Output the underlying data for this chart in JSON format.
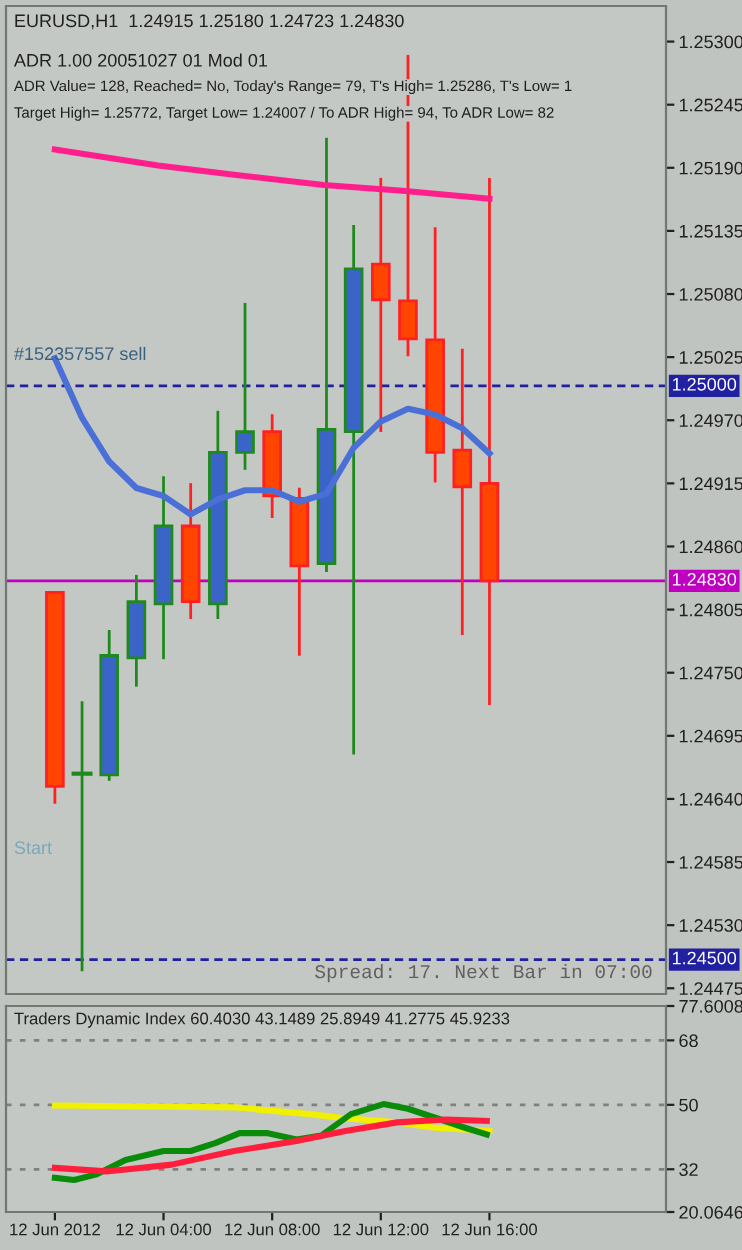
{
  "chart_data": [
    {
      "type": "candlestick",
      "title": "EURUSD,H1  1.24915 1.25180 1.24723 1.24830",
      "annotations": [
        "ADR 1.00 20051027 01 Mod 01",
        "ADR Value= 128, Reached= No, Today's Range= 79, T's High= 1.25286, T's Low= 1",
        "Target High= 1.25772, Target Low= 1.24007 / To ADR High= 94, To ADR Low= 82",
        "#152357557 sell",
        "Start",
        "Spread: 17. Next Bar in 07:00"
      ],
      "x": [
        "2012-06-12T00:00",
        "2012-06-12T01:00",
        "2012-06-12T02:00",
        "2012-06-12T03:00",
        "2012-06-12T04:00",
        "2012-06-12T05:00",
        "2012-06-12T06:00",
        "2012-06-12T07:00",
        "2012-06-12T08:00",
        "2012-06-12T09:00",
        "2012-06-12T10:00",
        "2012-06-12T11:00",
        "2012-06-12T12:00",
        "2012-06-12T13:00",
        "2012-06-12T14:00",
        "2012-06-12T15:00",
        "2012-06-12T16:00"
      ],
      "ohlc": [
        [
          1.2482,
          1.2482,
          1.24637,
          1.24651
        ],
        [
          1.24662,
          1.24724,
          1.24491,
          1.24662
        ],
        [
          1.24661,
          1.24786,
          1.24657,
          1.24765
        ],
        [
          1.24763,
          1.24834,
          1.24739,
          1.24812
        ],
        [
          1.2481,
          1.2492,
          1.24763,
          1.24878
        ],
        [
          1.24878,
          1.24914,
          1.24798,
          1.24812
        ],
        [
          1.2481,
          1.24977,
          1.24798,
          1.24942
        ],
        [
          1.24942,
          1.25071,
          1.24928,
          1.2496
        ],
        [
          1.2496,
          1.24974,
          1.24886,
          1.24904
        ],
        [
          1.24902,
          1.2491,
          1.24766,
          1.24843
        ],
        [
          1.24845,
          1.25215,
          1.24839,
          1.24962
        ],
        [
          1.2496,
          1.25139,
          1.2468,
          1.25102
        ],
        [
          1.25106,
          1.2518,
          1.24961,
          1.25075
        ],
        [
          1.25074,
          1.25287,
          1.25027,
          1.25041
        ],
        [
          1.2504,
          1.25137,
          1.24917,
          1.24942
        ],
        [
          1.24944,
          1.25031,
          1.24784,
          1.24912
        ],
        [
          1.24915,
          1.2518,
          1.24723,
          1.2483
        ]
      ],
      "colors": [
        "#ff4500",
        "#1e8a1e",
        "#3a64c8",
        "#3a64c8",
        "#3a64c8",
        "#ff4500",
        "#3a64c8",
        "#3a64c8",
        "#ff4500",
        "#ff4500",
        "#3a64c8",
        "#3a64c8",
        "#ff4500",
        "#ff4500",
        "#ff4500",
        "#ff4500",
        "#ff4500"
      ],
      "series": [
        {
          "type": "line",
          "color": "#ff1e8c",
          "x": [
            "2012-06-12T00:00",
            "2012-06-12T03:48",
            "2012-06-12T06:36",
            "2012-06-12T09:54",
            "2012-06-12T12:48",
            "2012-06-12T16:00"
          ],
          "values": [
            1.25206,
            1.25192,
            1.25184,
            1.25175,
            1.2517,
            1.25163
          ]
        },
        {
          "type": "line",
          "color": "#4a6fd6",
          "x": [
            "2012-06-12T00:00",
            "2012-06-12T01:00",
            "2012-06-12T02:00",
            "2012-06-12T03:00",
            "2012-06-12T04:00",
            "2012-06-12T05:00",
            "2012-06-12T06:00",
            "2012-06-12T07:00",
            "2012-06-12T08:00",
            "2012-06-12T09:00",
            "2012-06-12T10:00",
            "2012-06-12T11:00",
            "2012-06-12T12:00",
            "2012-06-12T13:00",
            "2012-06-12T14:00",
            "2012-06-12T15:00",
            "2012-06-12T16:00"
          ],
          "values": [
            1.25024,
            1.24972,
            1.24934,
            1.24911,
            1.24904,
            1.24888,
            1.24901,
            1.24909,
            1.24909,
            1.24899,
            1.24906,
            1.24946,
            1.24969,
            1.2498,
            1.24975,
            1.24963,
            1.24941
          ]
        }
      ],
      "ref_lines": [
        {
          "axis": "y",
          "value": 1.25,
          "label": "1.25000",
          "color": "#2020a0",
          "line_style": "dashed"
        },
        {
          "axis": "y",
          "value": 1.2483,
          "label": "1.24830",
          "color": "#c000c0",
          "line_style": "solid"
        },
        {
          "axis": "y",
          "value": 1.245,
          "label": "1.24500",
          "color": "#2020a0",
          "line_style": "dashed"
        }
      ],
      "xlim": [
        "2012-06-11T22:12",
        "2012-06-12T22:30"
      ],
      "ylim": [
        1.2447,
        1.25331
      ],
      "yticks": [
        {
          "value": 1.253,
          "label": "1.25300"
        },
        {
          "value": 1.25245,
          "label": "1.25245"
        },
        {
          "value": 1.2519,
          "label": "1.25190"
        },
        {
          "value": 1.25135,
          "label": "1.25135"
        },
        {
          "value": 1.2508,
          "label": "1.25080"
        },
        {
          "value": 1.25025,
          "label": "1.25025"
        },
        {
          "value": 1.2497,
          "label": "1.24970"
        },
        {
          "value": 1.24915,
          "label": "1.24915"
        },
        {
          "value": 1.2486,
          "label": "1.24860"
        },
        {
          "value": 1.24805,
          "label": "1.24805"
        },
        {
          "value": 1.2475,
          "label": "1.24750"
        },
        {
          "value": 1.24695,
          "label": "1.24695"
        },
        {
          "value": 1.2464,
          "label": "1.24640"
        },
        {
          "value": 1.24585,
          "label": "1.24585"
        },
        {
          "value": 1.2453,
          "label": "1.24530"
        },
        {
          "value": 1.24475,
          "label": "1.24475"
        }
      ],
      "tick_labels": "y",
      "grid": false
    },
    {
      "type": "line",
      "title": "Traders Dynamic Index 60.4030 43.1489 25.8949 41.2775 45.9233",
      "series": [
        {
          "color": "#f0f000",
          "x": [
            "2012-06-12T00:00",
            "2012-06-12T06:36",
            "2012-06-12T09:24",
            "2012-06-12T10:30",
            "2012-06-12T12:36",
            "2012-06-12T14:00",
            "2012-06-12T16:00"
          ],
          "values": [
            49.8,
            49.3,
            47.4,
            46.4,
            45.1,
            43.6,
            42.7
          ]
        },
        {
          "color": "#0a8c0a",
          "x": [
            "2012-06-12T00:00",
            "2012-06-12T00:42",
            "2012-06-12T01:30",
            "2012-06-12T02:36",
            "2012-06-12T04:00",
            "2012-06-12T05:00",
            "2012-06-12T05:54",
            "2012-06-12T06:48",
            "2012-06-12T07:48",
            "2012-06-12T08:54",
            "2012-06-12T09:48",
            "2012-06-12T10:54",
            "2012-06-12T12:06",
            "2012-06-12T13:00",
            "2012-06-12T14:12",
            "2012-06-12T15:06",
            "2012-06-12T15:54"
          ],
          "values": [
            29.6,
            29.0,
            30.5,
            34.6,
            37.1,
            37.1,
            39.3,
            42.1,
            42.1,
            40.3,
            41.4,
            47.4,
            50.2,
            48.9,
            45.9,
            43.6,
            41.7
          ]
        },
        {
          "color": "#ff1e3c",
          "x": [
            "2012-06-12T00:00",
            "2012-06-12T01:54",
            "2012-06-12T04:18",
            "2012-06-12T06:36",
            "2012-06-12T08:54",
            "2012-06-12T10:42",
            "2012-06-12T12:36",
            "2012-06-12T14:24",
            "2012-06-12T15:54"
          ],
          "values": [
            32.4,
            31.4,
            33.3,
            37.1,
            39.9,
            42.7,
            45.1,
            45.9,
            45.5
          ]
        }
      ],
      "ref_lines": [
        {
          "axis": "y",
          "value": 68,
          "color": "#808080",
          "line_style": "dotted"
        },
        {
          "axis": "y",
          "value": 50,
          "color": "#808080",
          "line_style": "dotted"
        },
        {
          "axis": "y",
          "value": 32,
          "color": "#808080",
          "line_style": "dotted"
        }
      ],
      "xlim": [
        "2012-06-11T22:12",
        "2012-06-12T22:30"
      ],
      "ylim": [
        20.0646,
        77.6008
      ],
      "xticks": [
        {
          "value": "2012-06-12T00:00",
          "label": "12 Jun 2012"
        },
        {
          "value": "2012-06-12T04:00",
          "label": "12 Jun 04:00"
        },
        {
          "value": "2012-06-12T08:00",
          "label": "12 Jun 08:00"
        },
        {
          "value": "2012-06-12T12:00",
          "label": "12 Jun 12:00"
        },
        {
          "value": "2012-06-12T16:00",
          "label": "12 Jun 16:00"
        }
      ],
      "yticks": [
        77.6008,
        68,
        50,
        32,
        20.0646
      ],
      "grid": false
    }
  ]
}
